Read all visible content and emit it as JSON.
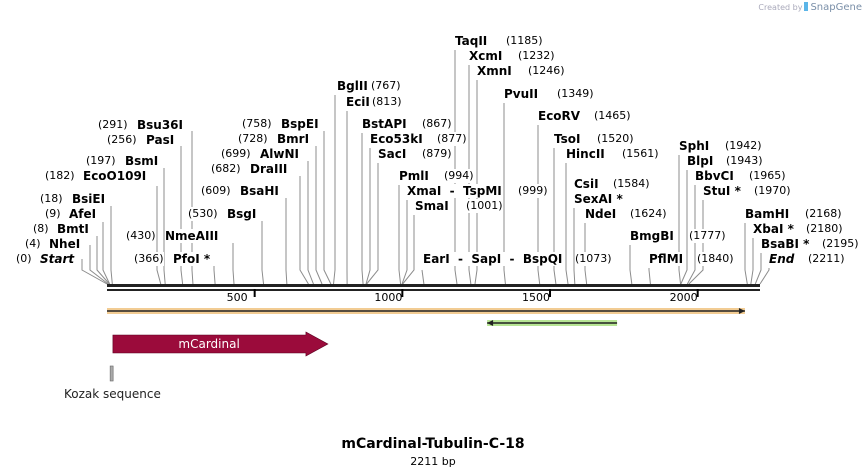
{
  "title": "mCardinal-Tubulin-C-18",
  "length_label": "2211 bp",
  "sequence_length": 2211,
  "watermark": {
    "prefix": "Created by",
    "brand": "SnapGene"
  },
  "ruler_ticks": [
    500,
    1000,
    1500,
    2000
  ],
  "sites": [
    {
      "text": "Start",
      "num": "(0)",
      "position": 0,
      "italic": true
    },
    {
      "text": "NheI",
      "num": "(4)",
      "position": 4
    },
    {
      "text": "BmtI",
      "num": "(8)",
      "position": 8
    },
    {
      "text": "AfeI",
      "num": "(9)",
      "position": 9
    },
    {
      "text": "BsiEI",
      "num": "(18)",
      "position": 18
    },
    {
      "text": "EcoO109I",
      "num": "(182)",
      "position": 182
    },
    {
      "text": "BsmI",
      "num": "(197)",
      "position": 197
    },
    {
      "text": "PasI",
      "num": "(256)",
      "position": 256
    },
    {
      "text": "Bsu36I",
      "num": "(291)",
      "position": 291
    },
    {
      "text": "PfoI *",
      "num": "(366)",
      "position": 366
    },
    {
      "text": "NmeAIII",
      "num": "(430)",
      "position": 430
    },
    {
      "text": "BsgI",
      "num": "(530)",
      "position": 530
    },
    {
      "text": "BsaHI",
      "num": "(609)",
      "position": 609
    },
    {
      "text": "DraIII",
      "num": "(682)",
      "position": 682
    },
    {
      "text": "AlwNI",
      "num": "(699)",
      "position": 699
    },
    {
      "text": "BmrI",
      "num": "(728)",
      "position": 728
    },
    {
      "text": "BspEI",
      "num": "(758)",
      "position": 758
    },
    {
      "text": "BglII",
      "num": "(767)",
      "position": 767
    },
    {
      "text": "EciI",
      "num": "(813)",
      "position": 813
    },
    {
      "text": "BstAPI",
      "num": "(867)",
      "position": 867
    },
    {
      "text": "Eco53kI",
      "num": "(877)",
      "position": 877
    },
    {
      "text": "SacI",
      "num": "(879)",
      "position": 879
    },
    {
      "text": "PmlI",
      "num": "(994)",
      "position": 994
    },
    {
      "text": "XmaI  -  TspMI",
      "num": "(999)",
      "position": 999
    },
    {
      "text": "SmaI",
      "num": "(1001)",
      "position": 1001
    },
    {
      "text": "EarI  -  SapI  -  BspQI",
      "num": "(1073)",
      "position": 1073
    },
    {
      "text": "TaqII",
      "num": "(1185)",
      "position": 1185
    },
    {
      "text": "XcmI",
      "num": "(1232)",
      "position": 1232
    },
    {
      "text": "XmnI",
      "num": "(1246)",
      "position": 1246
    },
    {
      "text": "PvuII",
      "num": "(1349)",
      "position": 1349
    },
    {
      "text": "EcoRV",
      "num": "(1465)",
      "position": 1465
    },
    {
      "text": "TsoI",
      "num": "(1520)",
      "position": 1520
    },
    {
      "text": "HincII",
      "num": "(1561)",
      "position": 1561
    },
    {
      "text": "CsiI",
      "num": "(1584)",
      "position": 1584,
      "extra": "SexAI *"
    },
    {
      "text": "NdeI",
      "num": "(1624)",
      "position": 1624
    },
    {
      "text": "BmgBI",
      "num": "(1777)",
      "position": 1777
    },
    {
      "text": "PflMI",
      "num": "(1840)",
      "position": 1840
    },
    {
      "text": "SphI",
      "num": "(1942)",
      "position": 1942
    },
    {
      "text": "BlpI",
      "num": "(1943)",
      "position": 1943
    },
    {
      "text": "BbvCI",
      "num": "(1965)",
      "position": 1965
    },
    {
      "text": "StuI *",
      "num": "(1970)",
      "position": 1970
    },
    {
      "text": "BamHI",
      "num": "(2168)",
      "position": 2168
    },
    {
      "text": "XbaI *",
      "num": "(2180)",
      "position": 2180
    },
    {
      "text": "BsaBI *",
      "num": "(2195)",
      "position": 2195
    },
    {
      "text": "End",
      "num": "(2211)",
      "position": 2211,
      "italic": true
    }
  ],
  "features": [
    {
      "kind": "line-arrow",
      "start": 0,
      "end": 2160,
      "direction": "forward",
      "color": "#e8a33a"
    },
    {
      "kind": "line-arrow",
      "start": 1287,
      "end": 1727,
      "direction": "reverse",
      "color": "#7ccf3c"
    },
    {
      "kind": "cds",
      "label": "mCardinal",
      "start": 20,
      "end": 748,
      "direction": "forward",
      "color": "#9b0b3b"
    },
    {
      "kind": "misc",
      "label": "Kozak sequence",
      "start": 14,
      "end": 24,
      "color": "#999999"
    }
  ]
}
